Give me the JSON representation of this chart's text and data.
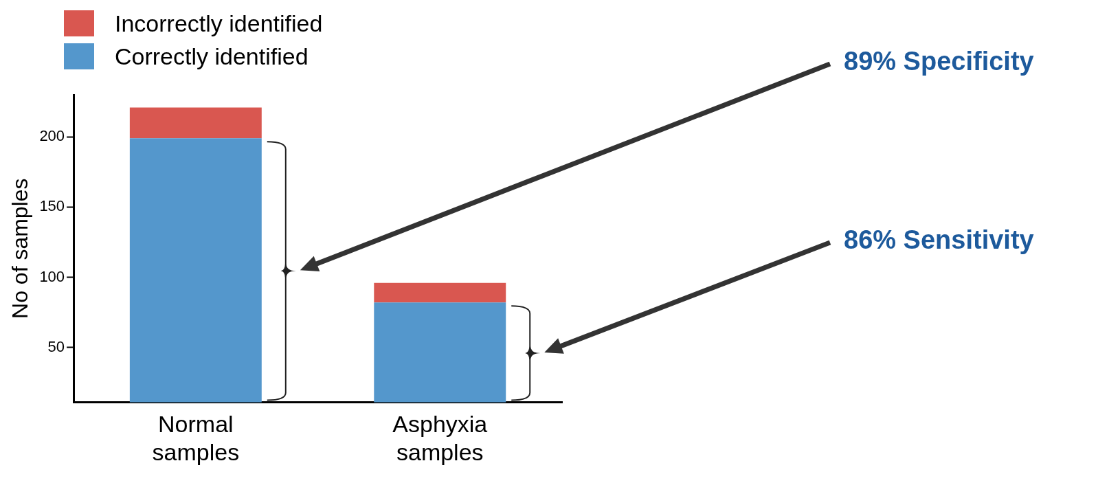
{
  "chart_data": {
    "type": "bar",
    "stacked": true,
    "ylabel": "No of samples",
    "categories": [
      "Normal samples",
      "Asphyxia samples"
    ],
    "series": [
      {
        "name": "Correctly identified",
        "color": "#5497cc",
        "values": [
          199,
          82
        ]
      },
      {
        "name": "Incorrectly identified",
        "color": "#d95750",
        "values": [
          22,
          14
        ]
      }
    ],
    "ylim": [
      11,
      230
    ],
    "yticks": [
      50,
      100,
      150,
      200
    ],
    "grid": false,
    "legend": "top left",
    "annotations": [
      "89% Specificity",
      "86% Sensitivity"
    ]
  }
}
